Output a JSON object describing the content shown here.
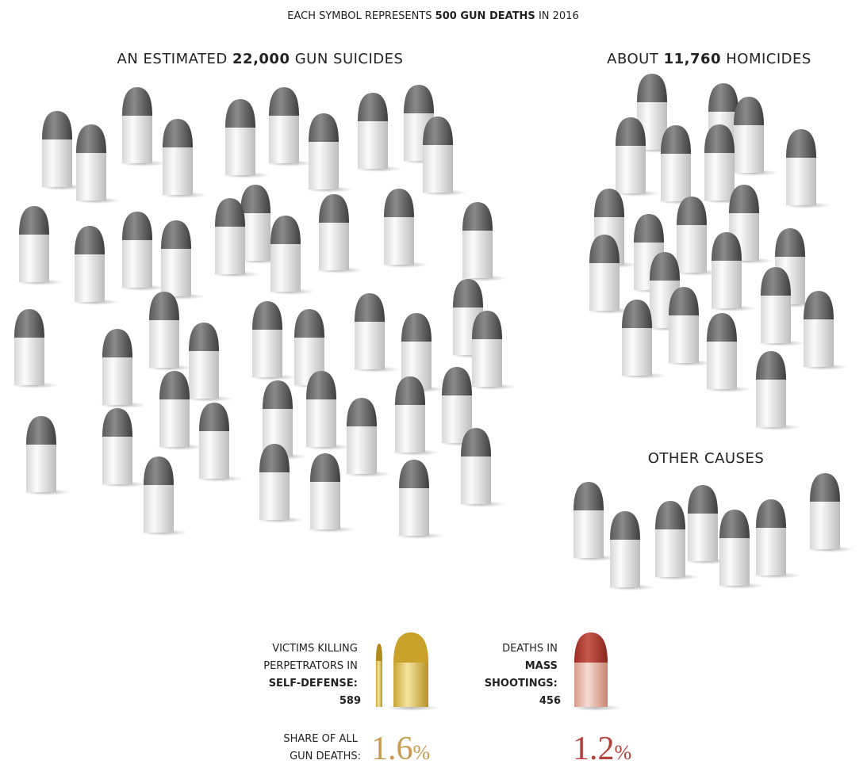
{
  "header": {
    "parts": [
      "EACH SYMBOL REPRESENTS ",
      "500 GUN DEATHS",
      " IN 2016"
    ]
  },
  "suicides": {
    "parts": [
      "AN ESTIMATED ",
      "22,000",
      " GUN SUICIDES"
    ]
  },
  "homicides": {
    "parts": [
      "ABOUT ",
      "11,760",
      " HOMICIDES"
    ]
  },
  "other": {
    "title": "OTHER CAUSES"
  },
  "self_defense": {
    "lines": [
      "VICTIMS KILLING",
      "PERPETRATORS IN",
      "SELF-DEFENSE:",
      "589"
    ],
    "share": "1.6",
    "unit": "%"
  },
  "mass_shootings": {
    "lines": [
      "DEATHS IN",
      "MASS",
      "SHOOTINGS:",
      "456"
    ],
    "share": "1.2",
    "unit": "%"
  },
  "share_label": {
    "lines": [
      "SHARE OF ALL",
      "GUN DEATHS:"
    ]
  }
}
